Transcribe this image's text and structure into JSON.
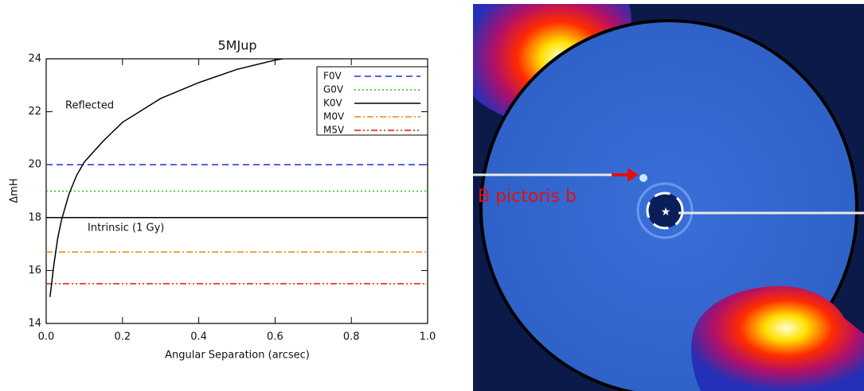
{
  "chart_data": {
    "type": "line",
    "title": "5MJup",
    "x_label": "Angular Separation (arcsec)",
    "y_label": "ΔmH",
    "annotations": [
      "Reflected",
      "Intrinsic (1 Gy)"
    ],
    "xlim": [
      0,
      1
    ],
    "ylim": [
      14,
      24
    ],
    "xticks": [
      {
        "value": 0,
        "label": "0.0"
      },
      0.2,
      0.4,
      0.6,
      0.8,
      {
        "value": 1,
        "label": "1.0"
      }
    ],
    "yticks": [
      14,
      16,
      18,
      20,
      22,
      24
    ],
    "legend": "upper right",
    "curve": {
      "color": "#000000",
      "x": [
        0.01,
        0.02,
        0.03,
        0.04,
        0.06,
        0.08,
        0.1,
        0.15,
        0.2,
        0.3,
        0.4,
        0.5,
        0.6,
        0.62
      ],
      "values": [
        15,
        16.2,
        17.2,
        17.9,
        18.9,
        19.6,
        20.1,
        20.9,
        21.6,
        22.5,
        23.1,
        23.6,
        23.95,
        24
      ]
    },
    "series": [
      {
        "name": "F0V",
        "color": "#1f2fd6",
        "dash": "8,5",
        "x": [
          0,
          1
        ],
        "values": [
          20,
          20
        ]
      },
      {
        "name": "G0V",
        "color": "#22c322",
        "dash": "2,3",
        "x": [
          0,
          1
        ],
        "values": [
          19,
          19
        ]
      },
      {
        "name": "K0V",
        "color": "#000000",
        "dash": "none",
        "x": [
          0,
          1
        ],
        "values": [
          18,
          18
        ]
      },
      {
        "name": "M0V",
        "color": "#f08010",
        "dash": "8,3,2,3",
        "x": [
          0,
          1
        ],
        "values": [
          16.7,
          16.7
        ]
      },
      {
        "name": "M5V",
        "color": "#e01515",
        "dash": "8,3,2,3,2,3",
        "x": [
          0,
          1
        ],
        "values": [
          15.5,
          15.5
        ]
      }
    ]
  },
  "image": {
    "label": "B pictoris b"
  }
}
